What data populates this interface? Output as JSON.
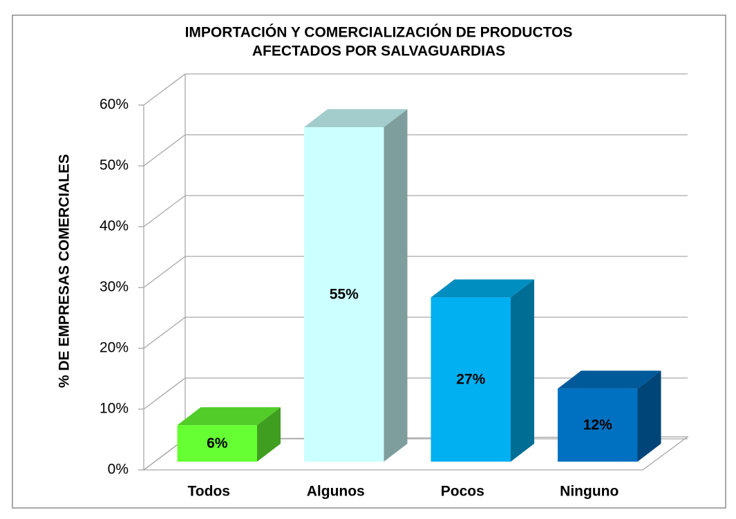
{
  "chart_data": {
    "type": "bar3d",
    "title": [
      "IMPORTACIÓN Y COMERCIALIZACIÓN DE PRODUCTOS",
      "AFECTADOS POR SALVAGUARDIAS"
    ],
    "y_label": "% DE EMPRESAS COMERCIALES",
    "categories": [
      "Todos",
      "Algunos",
      "Pocos",
      "Ninguno"
    ],
    "values": [
      6,
      55,
      27,
      12
    ],
    "value_labels": [
      "6%",
      "55%",
      "27%",
      "12%"
    ],
    "colors": [
      "#66ff33",
      "#ccffff",
      "#00b0f0",
      "#0070c0"
    ],
    "ylim": [
      0,
      60
    ],
    "yticks": [
      {
        "value": 0,
        "label": "0%"
      },
      {
        "value": 10,
        "label": "10%"
      },
      {
        "value": 20,
        "label": "20%"
      },
      {
        "value": 30,
        "label": "30%"
      },
      {
        "value": 40,
        "label": "40%"
      },
      {
        "value": 50,
        "label": "50%"
      },
      {
        "value": 60,
        "label": "60%"
      }
    ],
    "grid": true
  }
}
